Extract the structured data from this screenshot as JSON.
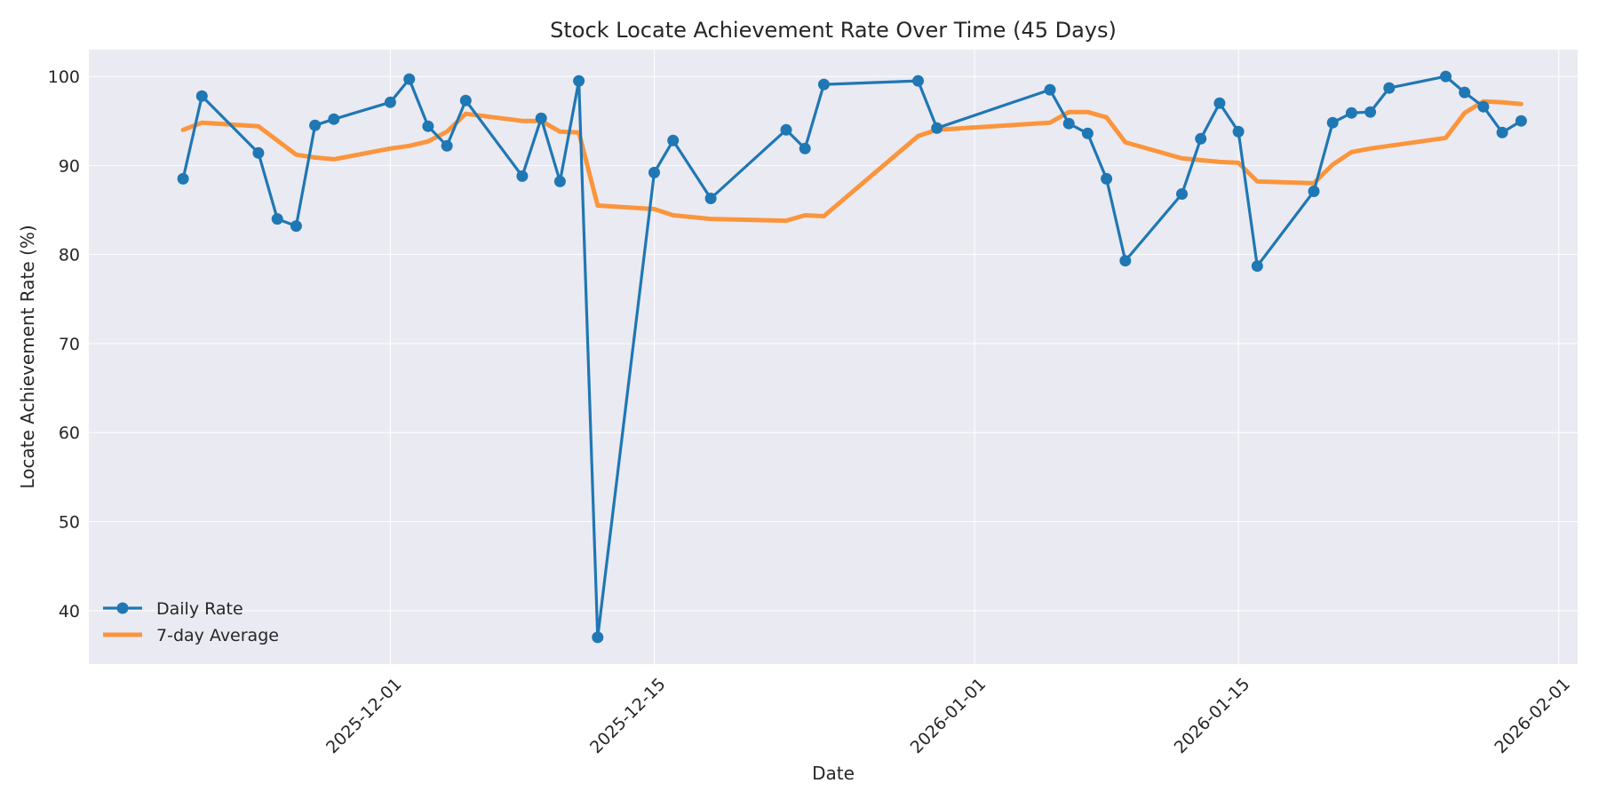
{
  "chart_data": {
    "type": "line",
    "title": "Stock Locate Achievement Rate Over Time (45 Days)",
    "xlabel": "Date",
    "ylabel": "Locate Achievement Rate (%)",
    "xlim": [
      "2025-11-15",
      "2026-02-02"
    ],
    "ylim": [
      34,
      103
    ],
    "x_ticks": [
      "2025-12-01",
      "2025-12-15",
      "2026-01-01",
      "2026-01-15",
      "2026-02-01"
    ],
    "y_ticks": [
      40,
      50,
      60,
      70,
      80,
      90,
      100
    ],
    "grid": true,
    "legend_position": "lower-left",
    "colors": {
      "daily": "#1f77b4",
      "average": "#ff7f0e",
      "plot_background": "#eaeaf2",
      "grid": "#ffffff"
    },
    "x": [
      "2025-11-20",
      "2025-11-21",
      "2025-11-24",
      "2025-11-25",
      "2025-11-26",
      "2025-11-27",
      "2025-11-28",
      "2025-12-01",
      "2025-12-02",
      "2025-12-03",
      "2025-12-04",
      "2025-12-05",
      "2025-12-08",
      "2025-12-09",
      "2025-12-10",
      "2025-12-11",
      "2025-12-12",
      "2025-12-15",
      "2025-12-16",
      "2025-12-18",
      "2025-12-22",
      "2025-12-23",
      "2025-12-24",
      "2025-12-29",
      "2025-12-30",
      "2026-01-05",
      "2026-01-06",
      "2026-01-07",
      "2026-01-08",
      "2026-01-09",
      "2026-01-12",
      "2026-01-13",
      "2026-01-14",
      "2026-01-15",
      "2026-01-16",
      "2026-01-19",
      "2026-01-20",
      "2026-01-21",
      "2026-01-22",
      "2026-01-23",
      "2026-01-26",
      "2026-01-27",
      "2026-01-28",
      "2026-01-29",
      "2026-01-30"
    ],
    "series": [
      {
        "name": "Daily Rate",
        "values": [
          88.5,
          97.8,
          91.4,
          84.0,
          83.2,
          94.5,
          95.2,
          97.1,
          99.7,
          94.4,
          92.2,
          97.3,
          88.8,
          95.3,
          88.2,
          99.5,
          37.0,
          89.2,
          92.8,
          86.3,
          94.0,
          91.9,
          99.1,
          99.5,
          94.2,
          98.5,
          94.7,
          93.6,
          88.5,
          79.3,
          86.8,
          93.0,
          97.0,
          93.8,
          78.7,
          87.1,
          94.8,
          95.9,
          96.0,
          98.7,
          100.0,
          98.2,
          96.6,
          93.7,
          95.0
        ]
      },
      {
        "name": "7-day Average",
        "values": [
          94.0,
          94.8,
          94.4,
          92.8,
          91.2,
          90.9,
          90.7,
          91.9,
          92.2,
          92.7,
          93.8,
          95.8,
          95.0,
          95.0,
          93.8,
          93.7,
          85.5,
          85.1,
          84.4,
          84.0,
          83.8,
          84.4,
          84.3,
          93.3,
          94.0,
          94.8,
          96.0,
          96.0,
          95.4,
          92.6,
          90.8,
          90.6,
          90.4,
          90.3,
          88.2,
          88.0,
          90.1,
          91.5,
          91.9,
          92.2,
          93.1,
          95.9,
          97.2,
          97.1,
          96.9
        ]
      }
    ]
  }
}
